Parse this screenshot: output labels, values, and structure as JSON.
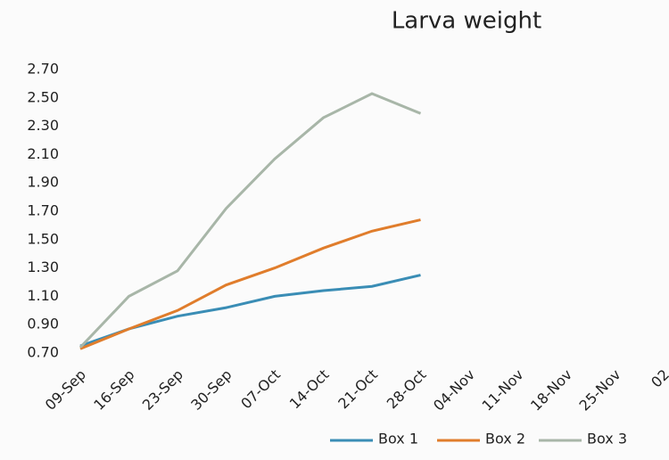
{
  "chart_data": {
    "type": "line",
    "title": "Larva weight",
    "categories": [
      "09-Sep",
      "16-Sep",
      "23-Sep",
      "30-Sep",
      "07-Oct",
      "14-Oct",
      "21-Oct",
      "28-Oct",
      "04-Nov",
      "11-Nov",
      "18-Nov",
      "25-Nov",
      "02"
    ],
    "series": [
      {
        "name": "Box 1",
        "color": "#3a8db5",
        "values": [
          0.75,
          0.87,
          0.96,
          1.02,
          1.1,
          1.14,
          1.17,
          1.25,
          null,
          null,
          null,
          null,
          null
        ]
      },
      {
        "name": "Box 2",
        "color": "#e07d2c",
        "values": [
          0.73,
          0.87,
          1.0,
          1.18,
          1.3,
          1.44,
          1.56,
          1.64,
          null,
          null,
          null,
          null,
          null
        ]
      },
      {
        "name": "Box 3",
        "color": "#a8b6a8",
        "values": [
          0.74,
          1.1,
          1.28,
          1.72,
          2.07,
          2.36,
          2.53,
          2.39,
          null,
          null,
          null,
          null,
          null
        ]
      }
    ],
    "ylim": [
      0.7,
      2.7
    ],
    "yticks": [
      {
        "value": 0.7,
        "label": "0.70"
      },
      {
        "value": 0.9,
        "label": "0.90"
      },
      {
        "value": 1.1,
        "label": "1.10"
      },
      {
        "value": 1.3,
        "label": "1.30"
      },
      {
        "value": 1.5,
        "label": "1.50"
      },
      {
        "value": 1.7,
        "label": "1.70"
      },
      {
        "value": 1.9,
        "label": "1.90"
      },
      {
        "value": 2.1,
        "label": "2.10"
      },
      {
        "value": 2.3,
        "label": "2.30"
      },
      {
        "value": 2.5,
        "label": "2.50"
      },
      {
        "value": 2.7,
        "label": "2.70"
      }
    ],
    "legend": "bottom"
  }
}
